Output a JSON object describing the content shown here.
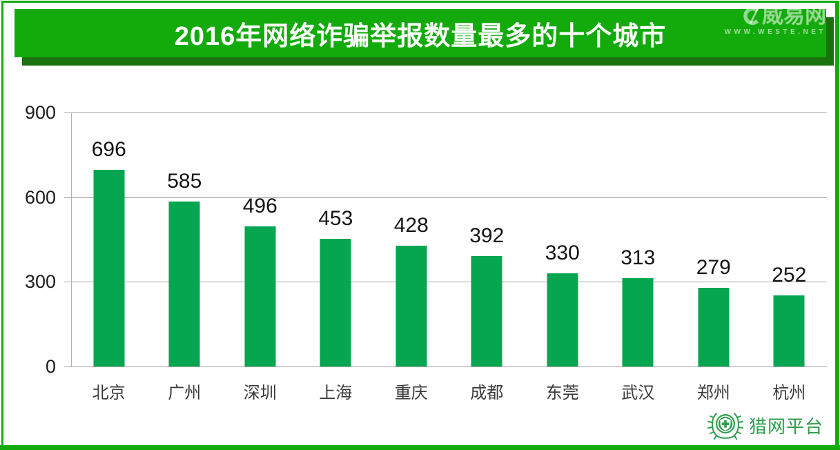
{
  "banner": {
    "title": "2016年网络诈骗举报数量最多的十个城市"
  },
  "watermark": {
    "logo_text": "威易网",
    "url_text": "WWW.WESTE.NET"
  },
  "footer_logo": {
    "label": "猎网平台"
  },
  "colors": {
    "banner_green": "#12ab0b",
    "banner_shadow_green": "#1a720f",
    "bar_green": "#06a651",
    "grid_gray": "#a3a3a3",
    "logo_green": "#2d9e4a",
    "title_text": "#ffffff"
  },
  "chart_data": {
    "type": "bar",
    "title": "2016年网络诈骗举报数量最多的十个城市",
    "categories": [
      "北京",
      "广州",
      "深圳",
      "上海",
      "重庆",
      "成都",
      "东莞",
      "武汉",
      "郑州",
      "杭州"
    ],
    "values": [
      696,
      585,
      496,
      453,
      428,
      392,
      330,
      313,
      279,
      252
    ],
    "xlabel": "",
    "ylabel": "",
    "ylim": [
      0,
      900
    ],
    "yticks": [
      0,
      300,
      600,
      900
    ],
    "grid": true,
    "legend": false,
    "bar_color": "#06a651"
  }
}
